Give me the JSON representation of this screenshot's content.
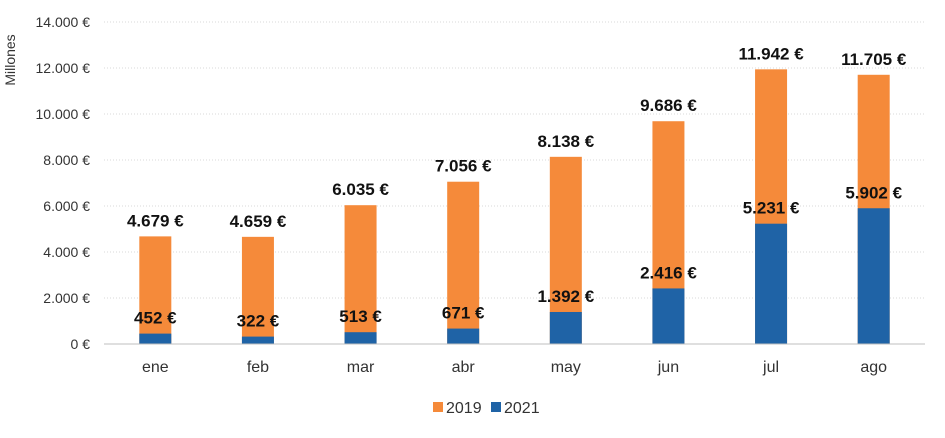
{
  "chart_data": {
    "type": "bar",
    "stacked": false,
    "overlap": true,
    "categories": [
      "ene",
      "feb",
      "mar",
      "abr",
      "may",
      "jun",
      "jul",
      "ago"
    ],
    "series": [
      {
        "name": "2019",
        "color": "#F58A3A",
        "values": [
          4679,
          4659,
          6035,
          7056,
          8138,
          9686,
          11942,
          11705
        ],
        "labels": [
          "4.679 €",
          "4.659 €",
          "6.035 €",
          "7.056 €",
          "8.138 €",
          "9.686 €",
          "11.942 €",
          "11.705 €"
        ]
      },
      {
        "name": "2021",
        "color": "#1F63A6",
        "values": [
          452,
          322,
          513,
          671,
          1392,
          2416,
          5231,
          5902
        ],
        "labels": [
          "452 €",
          "322 €",
          "513 €",
          "671 €",
          "1.392 €",
          "2.416 €",
          "5.231 €",
          "5.902 €"
        ]
      }
    ],
    "ylabel": "Millones",
    "ylim": [
      0,
      14000
    ],
    "yticks": [
      0,
      2000,
      4000,
      6000,
      8000,
      10000,
      12000,
      14000
    ],
    "ytick_labels": [
      "0 €",
      "2.000 €",
      "4.000 €",
      "6.000 €",
      "8.000 €",
      "10.000 €",
      "12.000 €",
      "14.000 €"
    ],
    "grid": true,
    "legend_position": "bottom"
  }
}
